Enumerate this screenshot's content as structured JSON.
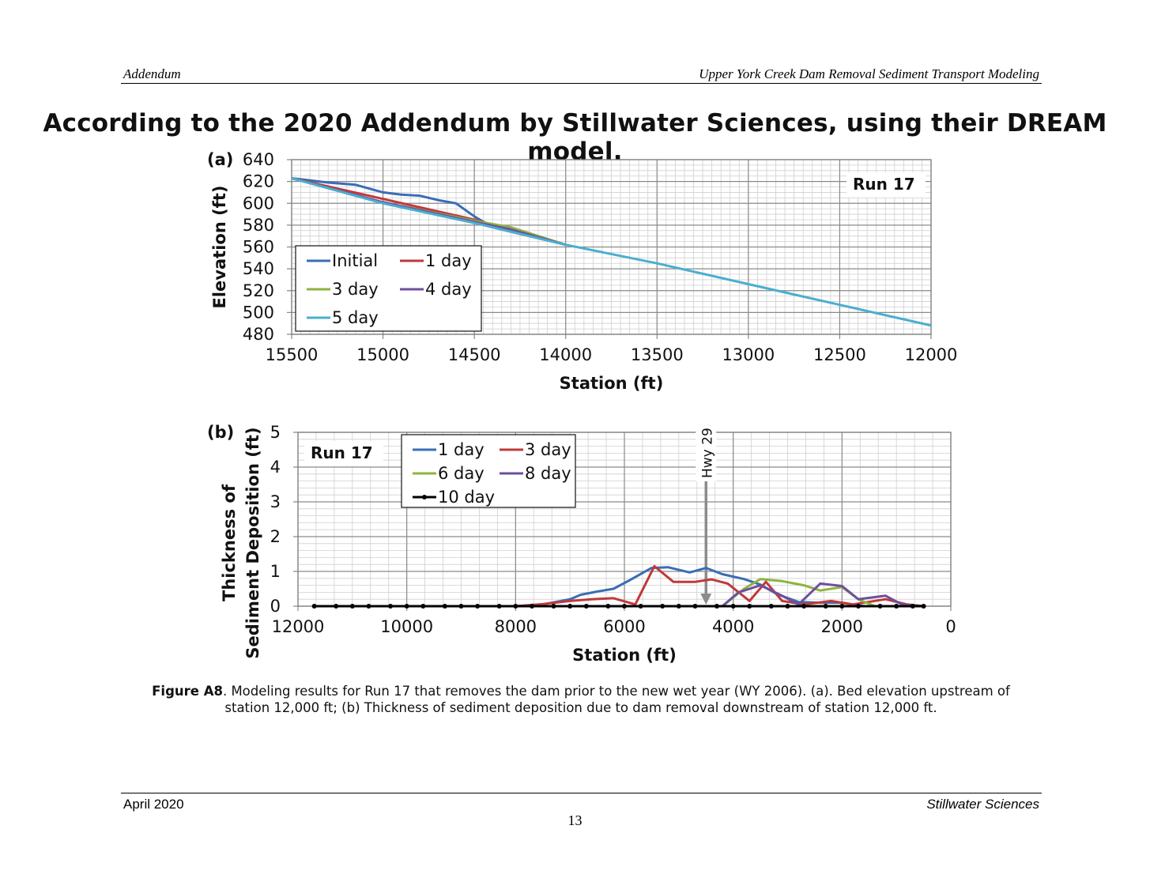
{
  "header": {
    "left": "Addendum",
    "right": "Upper York Creek Dam Removal Sediment Transport Modeling"
  },
  "main_title": "According to the 2020 Addendum by Stillwater Sciences, using their DREAM model.",
  "caption": {
    "label": "Figure A8",
    "text": ". Modeling results for Run 17 that removes the dam prior to the new wet year (WY 2006).  (a). Bed elevation upstream of station 12,000 ft; (b) Thickness of sediment deposition due to dam removal downstream of station 12,000 ft."
  },
  "footer": {
    "left": "April 2020",
    "right": "Stillwater Sciences",
    "page": "13"
  },
  "colors": {
    "blue": "#3a6db5",
    "red": "#c0393b",
    "green": "#8db43e",
    "purple": "#6e4f9c",
    "teal": "#4aaed0",
    "black": "#000000",
    "grid": "#b9b9b9",
    "arrow": "#8c8c8c"
  },
  "chart_data": [
    {
      "type": "line",
      "panel_label": "(a)",
      "annotation": "Run 17",
      "xlabel": "Station (ft)",
      "ylabel": "Elevation (ft)",
      "xlim": [
        15500,
        12000
      ],
      "x_reversed": true,
      "ylim": [
        480,
        640
      ],
      "xticks": [
        "15500",
        "15000",
        "14500",
        "14000",
        "13500",
        "13000",
        "12500",
        "12000"
      ],
      "yticks": [
        "480",
        "500",
        "520",
        "540",
        "560",
        "580",
        "600",
        "620",
        "640"
      ],
      "grid": true,
      "legend_position": "bottom-left",
      "series": [
        {
          "name": "Initial",
          "color": "blue",
          "x": [
            15500,
            15300,
            15150,
            15000,
            14900,
            14800,
            14700,
            14600,
            14500,
            14400,
            14200,
            14000
          ],
          "y": [
            623,
            619,
            617,
            610,
            608,
            607,
            603,
            600,
            588,
            578,
            570,
            562
          ]
        },
        {
          "name": "1 day",
          "color": "red",
          "x": [
            15500,
            15000,
            14500,
            14300,
            14000
          ],
          "y": [
            623,
            604,
            585,
            576,
            562
          ]
        },
        {
          "name": "3 day",
          "color": "green",
          "x": [
            15500,
            15000,
            14500,
            14300,
            14000
          ],
          "y": [
            623,
            601,
            584,
            578,
            562
          ]
        },
        {
          "name": "4 day",
          "color": "purple",
          "x": [
            15500,
            15000,
            14500,
            14300,
            14000
          ],
          "y": [
            623,
            601,
            583,
            576,
            562
          ]
        },
        {
          "name": "5 day",
          "color": "teal",
          "x": [
            15500,
            15000,
            14500,
            14000,
            13500,
            13000,
            12500,
            12000
          ],
          "y": [
            623,
            600,
            582,
            562,
            545,
            526,
            507,
            488
          ]
        }
      ]
    },
    {
      "type": "line",
      "panel_label": "(b)",
      "annotation": "Run 17",
      "marker_label": "Hwy 29",
      "marker_x": 4500,
      "xlabel": "Station (ft)",
      "ylabel_lines": [
        "Thickness of",
        "Sediment Deposition (ft)"
      ],
      "xlim": [
        12000,
        0
      ],
      "x_reversed": true,
      "ylim": [
        0,
        5
      ],
      "xticks": [
        "12000",
        "10000",
        "8000",
        "6000",
        "4000",
        "2000",
        "0"
      ],
      "yticks": [
        "0",
        "1",
        "2",
        "3",
        "4",
        "5"
      ],
      "grid": true,
      "legend_position": "top-left",
      "series": [
        {
          "name": "1 day",
          "color": "blue",
          "x": [
            8000,
            7500,
            7000,
            6800,
            6500,
            6200,
            5900,
            5500,
            5200,
            4800,
            4500,
            4200,
            3800,
            3500,
            3200,
            2800,
            2400,
            2000,
            1600,
            1200,
            800,
            500
          ],
          "y": [
            0,
            0.05,
            0.2,
            0.33,
            0.42,
            0.5,
            0.75,
            1.1,
            1.12,
            0.97,
            1.1,
            0.92,
            0.78,
            0.62,
            0.35,
            0.12,
            0.1,
            0.1,
            0,
            0,
            0,
            0
          ]
        },
        {
          "name": "3 day",
          "color": "red",
          "x": [
            8000,
            7500,
            7000,
            6600,
            6200,
            5800,
            5450,
            5100,
            4700,
            4400,
            4100,
            3700,
            3400,
            3100,
            2700,
            2200,
            1800,
            1200,
            800,
            500
          ],
          "y": [
            0,
            0.06,
            0.15,
            0.2,
            0.23,
            0.05,
            1.15,
            0.7,
            0.7,
            0.77,
            0.65,
            0.15,
            0.7,
            0.15,
            0.05,
            0.15,
            0.05,
            0.2,
            0.05,
            0
          ]
        },
        {
          "name": "6 day",
          "color": "green",
          "x": [
            4200,
            3800,
            3500,
            3100,
            2700,
            2400,
            2000,
            1700,
            1400,
            1100,
            800,
            500
          ],
          "y": [
            0,
            0.5,
            0.78,
            0.72,
            0.6,
            0.45,
            0.55,
            0.2,
            0,
            0,
            0,
            0
          ]
        },
        {
          "name": "8 day",
          "color": "purple",
          "x": [
            4200,
            3900,
            3500,
            3100,
            2800,
            2400,
            2000,
            1700,
            1200,
            900,
            500
          ],
          "y": [
            0,
            0.4,
            0.6,
            0.3,
            0.05,
            0.65,
            0.58,
            0.2,
            0.3,
            0.05,
            0
          ]
        },
        {
          "name": "10 day",
          "color": "black",
          "x": [
            11700,
            11300,
            11000,
            10700,
            10300,
            10000,
            9700,
            9300,
            9000,
            8700,
            8300,
            8000,
            7700,
            7300,
            7000,
            6700,
            6300,
            6000,
            5700,
            5300,
            5000,
            4700,
            4300,
            4000,
            3700,
            3300,
            3000,
            2700,
            2300,
            2000,
            1700,
            1300,
            1000,
            700,
            500
          ],
          "y": [
            0,
            0,
            0,
            0,
            0,
            0,
            0,
            0,
            0,
            0,
            0,
            0,
            0,
            0,
            0,
            0,
            0,
            0,
            0,
            0,
            0,
            0,
            0,
            0,
            0,
            0,
            0,
            0,
            0,
            0,
            0,
            0,
            0,
            0,
            0
          ]
        }
      ]
    }
  ]
}
